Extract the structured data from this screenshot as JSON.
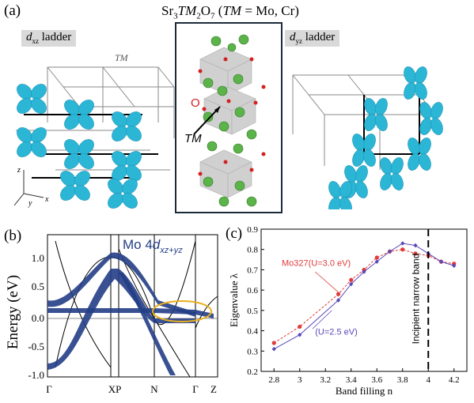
{
  "panel_a": {
    "label": "(a)",
    "title_prefix": "Sr",
    "title_sub1": "3",
    "title_mid": "TM",
    "title_sub2": "2",
    "title_o": "O",
    "title_sub3": "7",
    "title_paren": "(",
    "title_tm": "TM",
    "title_rest": " = Mo, Cr)",
    "left_ladder_d": "d",
    "left_ladder_sub": "xz",
    "left_ladder_word": "ladder",
    "right_ladder_d": "d",
    "right_ladder_sub": "yz",
    "right_ladder_word": "ladder",
    "tm_label": "TM",
    "crystal_o": "O",
    "crystal_tm": "TM",
    "axis_z": "z",
    "axis_x": "x",
    "axis_y": "y",
    "colors": {
      "orbital": "#2bb6d6",
      "sr_atom": "#5cb34a",
      "o_atom": "#d42020",
      "frame": "#1b2a3a"
    }
  },
  "panel_b": {
    "label": "(b)",
    "ylabel": "Energy (eV)",
    "annotation_prefix": "Mo 4",
    "annotation_d": "d",
    "annotation_sub": "xz+yz",
    "yticks": [
      "1.0",
      "0.5",
      "0.0",
      "-0.5",
      "-1.0"
    ],
    "xticks": [
      "Γ",
      "XP",
      "N",
      "Γ",
      "Z"
    ],
    "colors": {
      "fat_band": "#233e86",
      "ellipse": "#e8b020"
    }
  },
  "panel_c": {
    "label": "(c)",
    "vertical_line_label": "Incipient narrow band",
    "chart_data": {
      "type": "line",
      "xlabel": "Band filling n",
      "ylabel": "Eigenvalue λ",
      "xticks": [
        "2.8",
        "3",
        "3.2",
        "3.4",
        "3.6",
        "3.8",
        "4",
        "4.2"
      ],
      "yticks": [
        "0.2",
        "0.3",
        "0.4",
        "0.5",
        "0.6",
        "0.7",
        "0.8",
        "0.9"
      ],
      "xlim": [
        2.7,
        4.3
      ],
      "ylim": [
        0.2,
        0.9
      ],
      "series": [
        {
          "name": "Mo327(U=3.0 eV)",
          "color": "#e03a3a",
          "x": [
            2.8,
            3.0,
            3.3,
            3.4,
            3.5,
            3.6,
            3.7,
            3.8,
            3.9,
            4.0,
            4.1,
            4.2
          ],
          "y": [
            0.34,
            0.42,
            0.58,
            0.65,
            0.7,
            0.76,
            0.79,
            0.8,
            0.78,
            0.77,
            0.74,
            0.73
          ]
        },
        {
          "name": "(U=2.5 eV)",
          "color": "#5848b8",
          "x": [
            2.8,
            3.0,
            3.3,
            3.4,
            3.5,
            3.6,
            3.7,
            3.8,
            3.9,
            4.0,
            4.1,
            4.2
          ],
          "y": [
            0.31,
            0.38,
            0.55,
            0.63,
            0.69,
            0.74,
            0.79,
            0.83,
            0.82,
            0.78,
            0.74,
            0.72
          ]
        }
      ],
      "vline_x": 4.0
    }
  }
}
